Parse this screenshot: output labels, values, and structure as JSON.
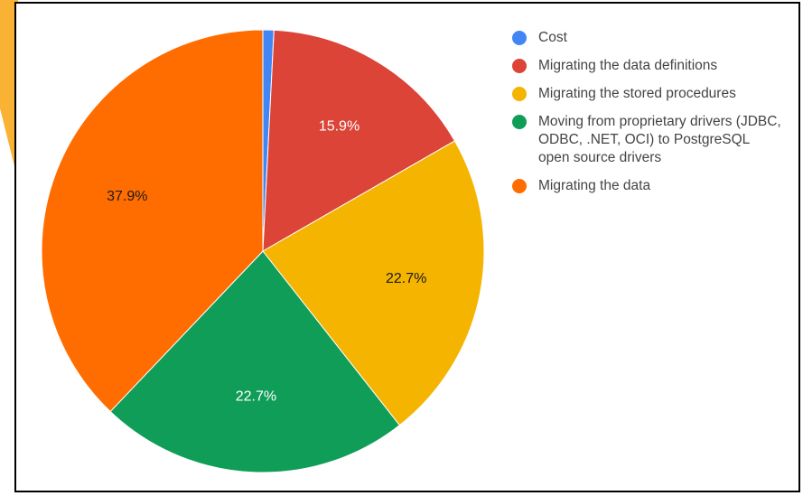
{
  "colors": {
    "accent": "#f9b233",
    "cost": "#4285f4",
    "definitions": "#db4437",
    "procedures": "#f4b400",
    "drivers": "#0f9d58",
    "data": "#ff6d01"
  },
  "chart_data": {
    "type": "pie",
    "title": "",
    "legend_position": "right",
    "slices": [
      {
        "label": "Cost",
        "value": 0.8,
        "display": "",
        "color": "#4285f4"
      },
      {
        "label": "Migrating the data definitions",
        "value": 15.9,
        "display": "15.9%",
        "color": "#db4437"
      },
      {
        "label": "Migrating the stored procedures",
        "value": 22.7,
        "display": "22.7%",
        "color": "#f4b400"
      },
      {
        "label": "Moving from proprietary drivers (JDBC, ODBC, .NET, OCI) to PostgreSQL open source drivers",
        "value": 22.7,
        "display": "22.7%",
        "color": "#0f9d58"
      },
      {
        "label": "Migrating the data",
        "value": 37.9,
        "display": "37.9%",
        "color": "#ff6d01"
      }
    ]
  }
}
